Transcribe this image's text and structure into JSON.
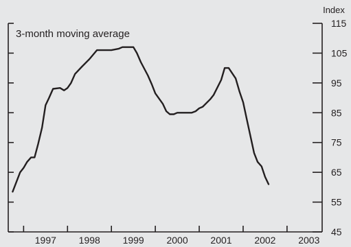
{
  "chart_data": {
    "type": "line",
    "title": "",
    "annotation": "3-month moving average",
    "ylabel": "Index",
    "ylim": [
      45,
      115
    ],
    "yticks": [
      45,
      55,
      65,
      75,
      85,
      95,
      105,
      115
    ],
    "xlim": [
      1996.65,
      2003.8
    ],
    "xtick_labels": [
      "1997",
      "1998",
      "1999",
      "2000",
      "2001",
      "2002",
      "2003"
    ],
    "xtick_positions": [
      1997.5,
      1998.5,
      1999.5,
      2000.5,
      2001.5,
      2002.5,
      2003.5
    ],
    "year_boundaries": [
      1997,
      1998,
      1999,
      2000,
      2001,
      2002,
      2003
    ],
    "grid": false,
    "series": [
      {
        "points": [
          [
            1996.75,
            58.5
          ],
          [
            1996.92,
            65.0
          ],
          [
            1997.0,
            66.5
          ],
          [
            1997.08,
            68.5
          ],
          [
            1997.17,
            70.0
          ],
          [
            1997.25,
            70.0
          ],
          [
            1997.33,
            74.5
          ],
          [
            1997.42,
            80.0
          ],
          [
            1997.5,
            87.5
          ],
          [
            1997.58,
            90.0
          ],
          [
            1997.67,
            93.0
          ],
          [
            1997.83,
            93.3
          ],
          [
            1997.92,
            92.5
          ],
          [
            1998.0,
            93.3
          ],
          [
            1998.08,
            95.0
          ],
          [
            1998.17,
            98.0
          ],
          [
            1998.33,
            100.5
          ],
          [
            1998.5,
            103.0
          ],
          [
            1998.67,
            106.0
          ],
          [
            1998.83,
            106.0
          ],
          [
            1999.0,
            106.0
          ],
          [
            1999.17,
            106.5
          ],
          [
            1999.25,
            107.0
          ],
          [
            1999.5,
            107.0
          ],
          [
            1999.58,
            105.0
          ],
          [
            1999.67,
            102.0
          ],
          [
            1999.83,
            97.5
          ],
          [
            1999.92,
            94.5
          ],
          [
            2000.0,
            91.5
          ],
          [
            2000.17,
            88.0
          ],
          [
            2000.25,
            85.5
          ],
          [
            2000.33,
            84.5
          ],
          [
            2000.42,
            84.5
          ],
          [
            2000.5,
            85.0
          ],
          [
            2000.67,
            85.0
          ],
          [
            2000.83,
            85.0
          ],
          [
            2000.92,
            85.5
          ],
          [
            2001.0,
            86.5
          ],
          [
            2001.08,
            87.0
          ],
          [
            2001.25,
            89.5
          ],
          [
            2001.33,
            91.0
          ],
          [
            2001.5,
            96.0
          ],
          [
            2001.58,
            100.0
          ],
          [
            2001.67,
            100.0
          ],
          [
            2001.83,
            96.5
          ],
          [
            2001.92,
            92.0
          ],
          [
            2002.0,
            88.5
          ],
          [
            2002.08,
            83.0
          ],
          [
            2002.25,
            71.5
          ],
          [
            2002.33,
            68.5
          ],
          [
            2002.42,
            67.0
          ],
          [
            2002.5,
            63.5
          ],
          [
            2002.58,
            61.0
          ]
        ]
      }
    ]
  }
}
